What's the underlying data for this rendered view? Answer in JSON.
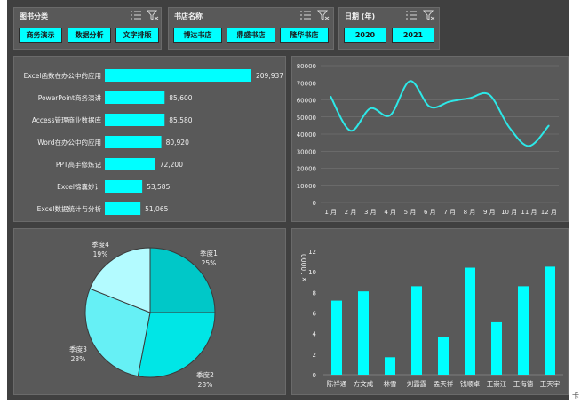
{
  "slicers": [
    {
      "title": "图书分类",
      "items": [
        "商务演示",
        "数据分析",
        "文字排版"
      ]
    },
    {
      "title": "书店名称",
      "items": [
        "博达书店",
        "鼎盛书店",
        "隆华书店"
      ]
    },
    {
      "title": "日期 (年)",
      "items": [
        "2020",
        "2021"
      ]
    }
  ],
  "colors": {
    "accent": "#00ffff",
    "panel": "#595959",
    "background": "#404040",
    "line": "#2de8e8"
  },
  "icons": [
    "multi-select-icon",
    "clear-filter-icon"
  ],
  "corner_mark": "卡",
  "chart_data": [
    {
      "type": "bar",
      "orientation": "horizontal",
      "categories": [
        "Excel函数在办公中的应用",
        "PowerPoint商务演讲",
        "Access管理商业数据库",
        "Word在办公中的应用",
        "PPT高手修炼记",
        "Excel锦囊妙计",
        "Excel数据统计与分析"
      ],
      "values": [
        209937,
        85600,
        85580,
        80920,
        72200,
        53585,
        51065
      ],
      "labels": [
        "209,937",
        "85,600",
        "85,580",
        "80,920",
        "72,200",
        "53,585",
        "51,065"
      ]
    },
    {
      "type": "line",
      "smooth": true,
      "x": [
        "1 月",
        "2 月",
        "3 月",
        "4 月",
        "5 月",
        "6 月",
        "7 月",
        "8 月",
        "9 月",
        "10 月",
        "11 月",
        "12 月"
      ],
      "values": [
        62000,
        42000,
        55000,
        51000,
        71000,
        56000,
        59000,
        61000,
        63000,
        44000,
        33000,
        45000
      ],
      "ylim": [
        0,
        80000
      ],
      "yticks": [
        "0",
        "10000",
        "20000",
        "30000",
        "40000",
        "50000",
        "60000",
        "70000",
        "80000"
      ],
      "grid": true
    },
    {
      "type": "pie",
      "categories": [
        "季度1",
        "季度2",
        "季度3",
        "季度4"
      ],
      "values": [
        25,
        28,
        28,
        19
      ],
      "percent_labels": [
        "25%",
        "28%",
        "28%",
        "19%"
      ],
      "colors": [
        "#00c8c8",
        "#00e6e6",
        "#66f0f5",
        "#b3fbff"
      ]
    },
    {
      "type": "bar",
      "categories": [
        "陈祥通",
        "方文成",
        "林雪",
        "刘露露",
        "孟天祥",
        "钱顺卓",
        "王崇江",
        "王海德",
        "王天宇"
      ],
      "values": [
        7.2,
        8.1,
        1.7,
        8.6,
        3.7,
        10.4,
        5.1,
        8.6,
        10.5
      ],
      "ylim": [
        0,
        12
      ],
      "yticks": [
        "0",
        "2",
        "4",
        "6",
        "8",
        "10",
        "12"
      ],
      "ylabel": "x 10000",
      "grid": false
    }
  ]
}
